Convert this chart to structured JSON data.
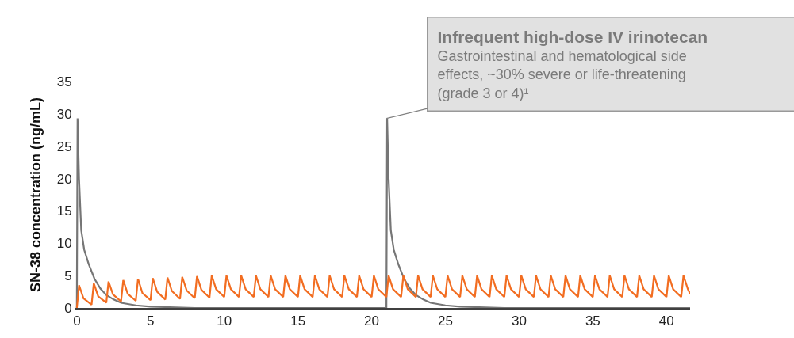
{
  "chart_data": {
    "type": "line",
    "ylabel": "SN-38 concentration (ng/mL)",
    "xlim": [
      -0.1,
      41.6
    ],
    "xticks": [
      0,
      5,
      10,
      15,
      20,
      25,
      30,
      35,
      40
    ],
    "ylim": [
      0,
      35
    ],
    "yticks": [
      0,
      5,
      10,
      15,
      20,
      25,
      30,
      35
    ],
    "marker": "none",
    "line_style": "solid",
    "series": [
      {
        "color": "#767676",
        "x": [
          0,
          0.05,
          0.15,
          0.3,
          0.5,
          0.8,
          1.2,
          1.6,
          2,
          2.5,
          3,
          4,
          5,
          8,
          21,
          21.05,
          21.15,
          21.3,
          21.5,
          21.8,
          22.2,
          22.6,
          23,
          23.5,
          24,
          25,
          26,
          29,
          41.6
        ],
        "values": [
          0,
          29.3,
          20,
          12,
          9,
          6.8,
          4.5,
          3,
          2,
          1.3,
          0.8,
          0.4,
          0.2,
          0,
          0,
          29.3,
          20,
          12,
          9,
          6.8,
          4.5,
          3,
          2,
          1.3,
          0.8,
          0.4,
          0.2,
          0,
          0
        ]
      },
      {
        "color": "#f26d21",
        "x": [
          0,
          0.15,
          0.45,
          1,
          1.15,
          1.45,
          2,
          2.15,
          2.45,
          3,
          3.15,
          3.45,
          4,
          4.15,
          4.45,
          5,
          5.15,
          5.45,
          6,
          6.15,
          6.45,
          7,
          7.15,
          7.45,
          8,
          8.15,
          8.45,
          9,
          9.15,
          9.45,
          10,
          10.15,
          10.45,
          11,
          11.15,
          11.45,
          12,
          12.15,
          12.45,
          13,
          13.15,
          13.45,
          14,
          14.15,
          14.45,
          15,
          15.15,
          15.45,
          16,
          16.15,
          16.45,
          17,
          17.15,
          17.45,
          18,
          18.15,
          18.45,
          19,
          19.15,
          19.45,
          20,
          20.15,
          20.45,
          21,
          21.15,
          21.45,
          22,
          22.15,
          22.45,
          23,
          23.15,
          23.45,
          24,
          24.15,
          24.45,
          25,
          25.15,
          25.45,
          26,
          26.15,
          26.45,
          27,
          27.15,
          27.45,
          28,
          28.15,
          28.45,
          29,
          29.15,
          29.45,
          30,
          30.15,
          30.45,
          31,
          31.15,
          31.45,
          32,
          32.15,
          32.45,
          33,
          33.15,
          33.45,
          34,
          34.15,
          34.45,
          35,
          35.15,
          35.45,
          36,
          36.15,
          36.45,
          37,
          37.15,
          37.45,
          38,
          38.15,
          38.45,
          39,
          39.15,
          39.45,
          40,
          40.15,
          40.45,
          41,
          41.15,
          41.45,
          41.6
        ],
        "values": [
          0,
          3.5,
          1.5,
          0.5,
          3.8,
          1.8,
          0.8,
          4.1,
          2.1,
          1.0,
          4.3,
          2.2,
          1.1,
          4.5,
          2.3,
          1.2,
          4.6,
          2.5,
          1.3,
          4.7,
          2.6,
          1.4,
          4.8,
          2.7,
          1.5,
          4.9,
          2.8,
          1.6,
          5.0,
          2.9,
          1.7,
          5.0,
          2.9,
          1.7,
          5.0,
          2.9,
          1.7,
          5.0,
          2.9,
          1.7,
          5.0,
          2.9,
          1.7,
          5.0,
          2.9,
          1.7,
          5.0,
          2.9,
          1.7,
          5.0,
          2.9,
          1.7,
          5.0,
          2.9,
          1.7,
          5.0,
          2.9,
          1.7,
          5.0,
          2.9,
          1.7,
          5.0,
          2.9,
          1.7,
          5.0,
          2.9,
          1.7,
          5.0,
          2.9,
          1.7,
          5.0,
          2.9,
          1.7,
          5.0,
          2.9,
          1.7,
          5.0,
          2.9,
          1.7,
          5.0,
          2.9,
          1.7,
          5.0,
          2.9,
          1.7,
          5.0,
          2.9,
          1.7,
          5.0,
          2.9,
          1.7,
          5.0,
          2.9,
          1.7,
          5.0,
          2.9,
          1.7,
          5.0,
          2.9,
          1.7,
          5.0,
          2.9,
          1.7,
          5.0,
          2.9,
          1.7,
          5.0,
          2.9,
          1.7,
          5.0,
          2.9,
          1.7,
          5.0,
          2.9,
          1.7,
          5.0,
          2.9,
          1.7,
          5.0,
          2.9,
          1.7,
          5.0,
          2.9,
          1.7,
          5.0,
          2.9,
          2.2
        ]
      }
    ],
    "annotations": [
      {
        "text": "Infrequent high-dose IV irinotecan\nGastrointestinal and hematological side\neffects, ~30% severe or life-threatening\n(grade 3 or 4)¹",
        "x": 21,
        "y": 29.3
      }
    ]
  }
}
